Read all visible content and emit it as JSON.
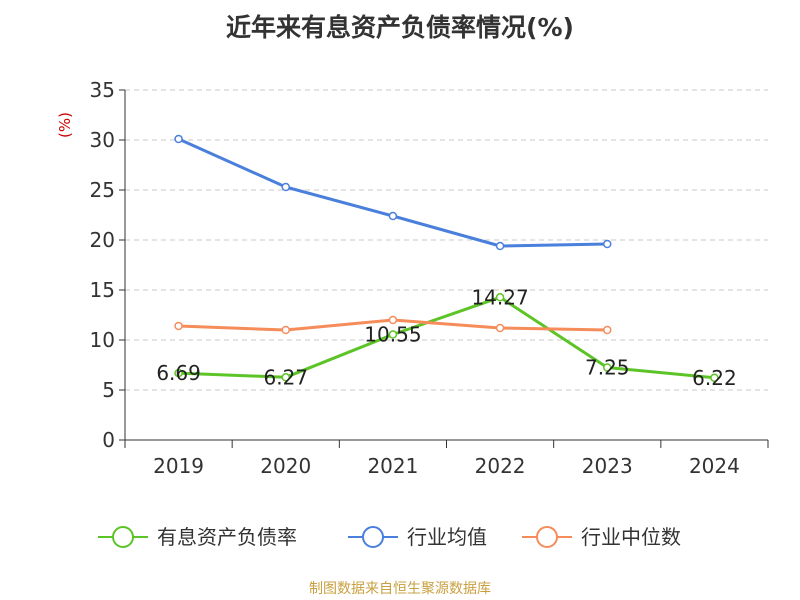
{
  "title": "近年来有息资产负债率情况(%)",
  "source": "制图数据来自恒生聚源数据库",
  "chart_data": {
    "type": "line",
    "title": "近年来有息资产负债率情况(%)",
    "y_unit_label": "(%)",
    "categories": [
      "2019",
      "2020",
      "2021",
      "2022",
      "2023",
      "2024"
    ],
    "ylim": [
      0,
      35
    ],
    "yticks": [
      0,
      5,
      10,
      15,
      20,
      25,
      30,
      35
    ],
    "grid": true,
    "legend_position": "bottom",
    "series": [
      {
        "name": "有息资产负债率",
        "color": "#5cc427",
        "values": [
          6.69,
          6.27,
          10.55,
          14.27,
          7.25,
          6.22
        ],
        "labels": [
          "6.69",
          "6.27",
          "10.55",
          "14.27",
          "7.25",
          "6.22"
        ]
      },
      {
        "name": "行业均值",
        "color": "#4a7fdc",
        "values": [
          30.1,
          25.3,
          22.4,
          19.4,
          19.6,
          null
        ]
      },
      {
        "name": "行业中位数",
        "color": "#f58c5a",
        "values": [
          11.4,
          11.0,
          12.0,
          11.2,
          11.0,
          null
        ]
      }
    ]
  }
}
